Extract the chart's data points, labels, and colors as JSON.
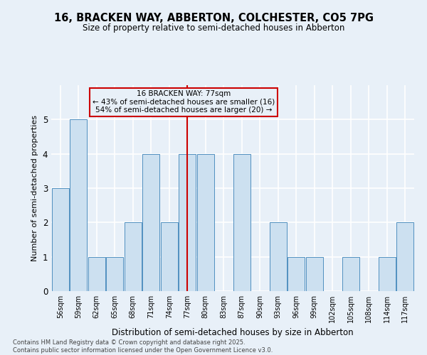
{
  "title_line1": "16, BRACKEN WAY, ABBERTON, COLCHESTER, CO5 7PG",
  "title_line2": "Size of property relative to semi-detached houses in Abberton",
  "xlabel": "Distribution of semi-detached houses by size in Abberton",
  "ylabel": "Number of semi-detached properties",
  "bins": [
    "56sqm",
    "59sqm",
    "62sqm",
    "65sqm",
    "68sqm",
    "71sqm",
    "74sqm",
    "77sqm",
    "80sqm",
    "83sqm",
    "87sqm",
    "90sqm",
    "93sqm",
    "96sqm",
    "99sqm",
    "102sqm",
    "105sqm",
    "108sqm",
    "114sqm",
    "117sqm"
  ],
  "values": [
    3,
    5,
    1,
    1,
    2,
    4,
    2,
    4,
    4,
    0,
    4,
    0,
    2,
    1,
    1,
    0,
    1,
    0,
    1,
    2
  ],
  "marker_bin_index": 7,
  "marker_label": "16 BRACKEN WAY: 77sqm",
  "pct_smaller": 43,
  "count_smaller": 16,
  "pct_larger": 54,
  "count_larger": 20,
  "bar_color": "#cce0f0",
  "bar_edge_color": "#5090c0",
  "marker_color": "#cc0000",
  "annotation_box_color": "#cc0000",
  "bg_color": "#e8f0f8",
  "grid_color": "#ffffff",
  "ylim": [
    0,
    6
  ],
  "yticks": [
    0,
    1,
    2,
    3,
    4,
    5,
    6
  ],
  "footnote1": "Contains HM Land Registry data © Crown copyright and database right 2025.",
  "footnote2": "Contains public sector information licensed under the Open Government Licence v3.0."
}
